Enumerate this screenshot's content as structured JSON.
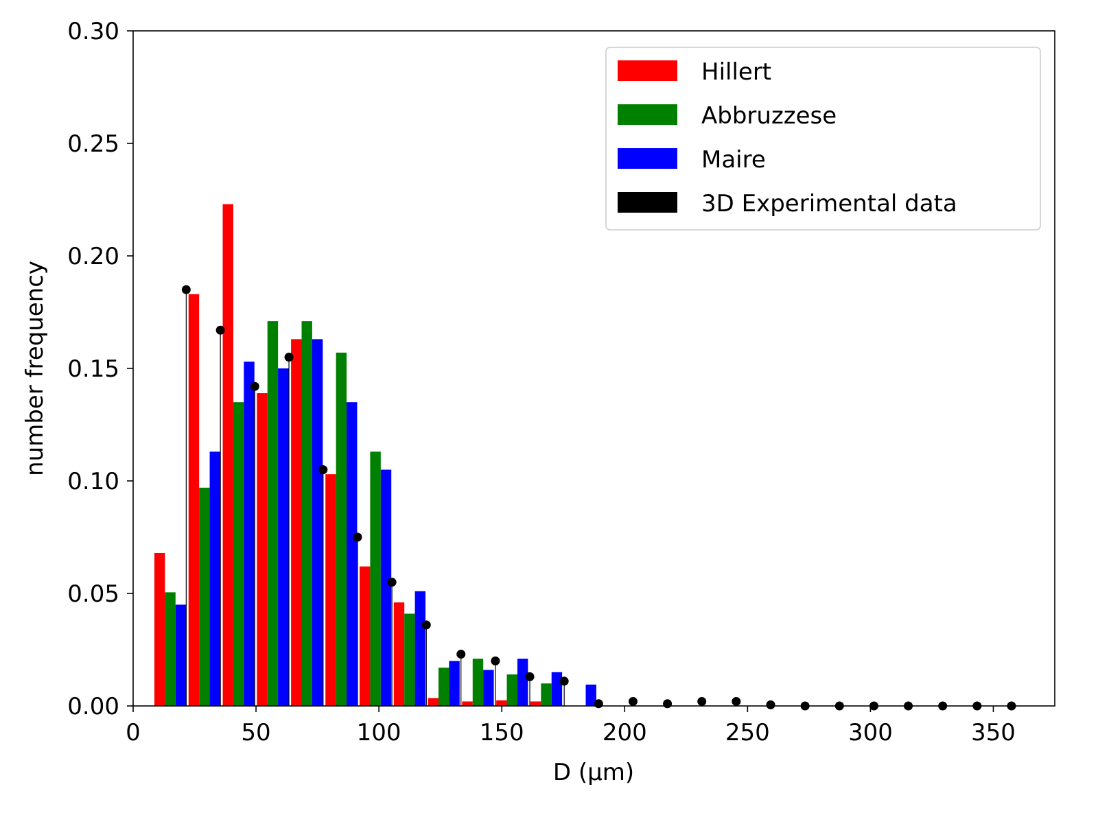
{
  "chart_data": {
    "type": "bar",
    "title": "",
    "xlabel": "D (μm)",
    "ylabel": "number frequency",
    "xlim": [
      0,
      375
    ],
    "ylim": [
      0,
      0.3
    ],
    "xticks": [
      0,
      50,
      100,
      150,
      200,
      250,
      300,
      350
    ],
    "yticks": [
      0.0,
      0.05,
      0.1,
      0.15,
      0.2,
      0.25,
      0.3
    ],
    "xtick_labels": [
      "0",
      "50",
      "100",
      "150",
      "200",
      "250",
      "300",
      "350"
    ],
    "ytick_labels": [
      "0.00",
      "0.05",
      "0.10",
      "0.15",
      "0.20",
      "0.25",
      "0.30"
    ],
    "grid": false,
    "legend_position": "top-right",
    "legend": [
      "Hillert",
      "Abbruzzese",
      "Maire",
      "3D Experimental data"
    ],
    "bar_width": 4.3,
    "series": [
      {
        "name": "Hillert",
        "color": "#ff0000",
        "x": [
          10.8,
          24.7,
          38.6,
          52.5,
          66.4,
          80.4,
          94.3,
          108.2,
          122.1,
          136.0,
          149.9,
          163.8
        ],
        "values": [
          0.068,
          0.183,
          0.223,
          0.139,
          0.163,
          0.103,
          0.062,
          0.046,
          0.0035,
          0.002,
          0.0025,
          0.002
        ]
      },
      {
        "name": "Abbruzzese",
        "color": "#008000",
        "x": [
          15.1,
          29.0,
          42.9,
          56.8,
          70.7,
          84.7,
          98.6,
          112.5,
          126.4,
          140.3,
          154.2,
          168.1
        ],
        "values": [
          0.0505,
          0.097,
          0.135,
          0.171,
          0.171,
          0.157,
          0.113,
          0.041,
          0.017,
          0.021,
          0.014,
          0.01
        ]
      },
      {
        "name": "Maire",
        "color": "#0000ff",
        "x": [
          19.4,
          33.3,
          47.2,
          61.1,
          75.0,
          89.0,
          102.9,
          116.8,
          130.7,
          144.6,
          158.5,
          172.4,
          186.3
        ],
        "values": [
          0.045,
          0.113,
          0.153,
          0.15,
          0.163,
          0.135,
          0.105,
          0.051,
          0.02,
          0.016,
          0.021,
          0.015,
          0.0095
        ]
      },
      {
        "name": "3D Experimental data",
        "color": "#000000",
        "type": "stem",
        "x": [
          21.6,
          35.5,
          49.5,
          63.4,
          77.3,
          91.3,
          105.3,
          119.3,
          133.4,
          147.4,
          161.4,
          175.4,
          189.4,
          203.4,
          217.4,
          231.4,
          245.4,
          259.4,
          273.4,
          287.4,
          301.4,
          315.4,
          329.4,
          343.4,
          357.4
        ],
        "values": [
          0.185,
          0.167,
          0.142,
          0.155,
          0.105,
          0.075,
          0.055,
          0.036,
          0.023,
          0.02,
          0.013,
          0.011,
          0.001,
          0.002,
          0.001,
          0.002,
          0.002,
          0.0005,
          0.0,
          0.0,
          0.0,
          0.0,
          0.0,
          0.0,
          0.0
        ]
      }
    ]
  }
}
